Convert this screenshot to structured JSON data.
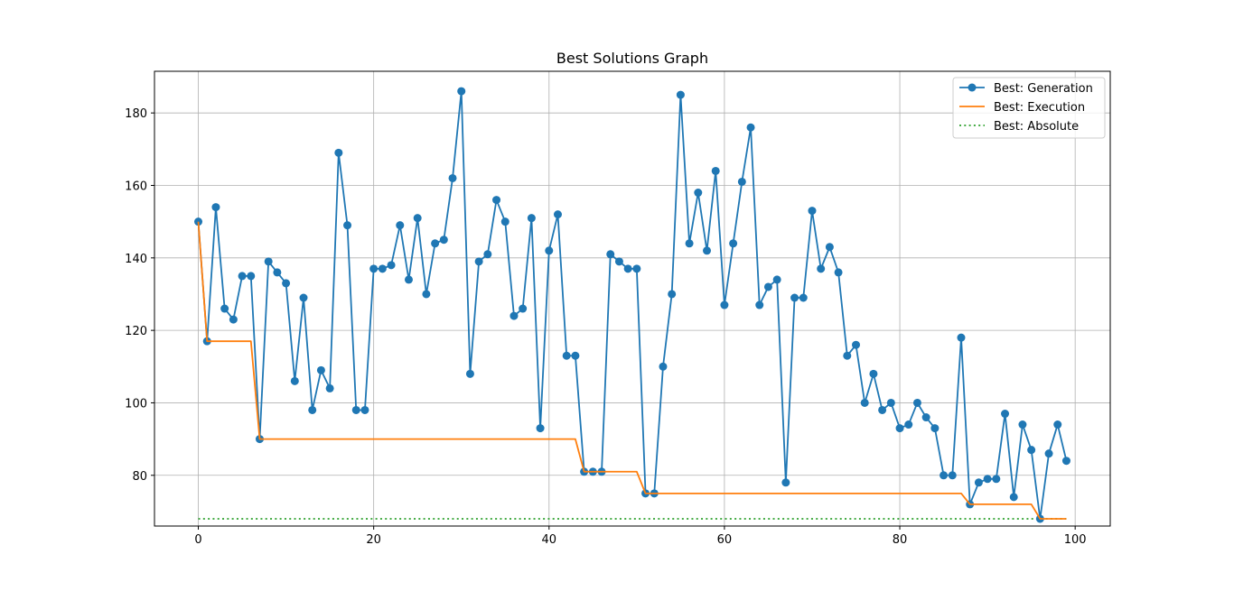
{
  "chart_data": {
    "type": "line",
    "title": "Best Solutions Graph",
    "xlabel": "",
    "ylabel": "",
    "xlim": [
      -5,
      104
    ],
    "ylim": [
      66,
      191.5
    ],
    "xticks": [
      0,
      20,
      40,
      60,
      80,
      100
    ],
    "yticks": [
      80,
      100,
      120,
      140,
      160,
      180
    ],
    "grid": true,
    "legend_position": "top-right",
    "series": [
      {
        "name": "Best: Generation",
        "color": "#1f77b4",
        "style": "line-marker",
        "values": [
          150,
          117,
          154,
          126,
          123,
          135,
          135,
          90,
          139,
          136,
          133,
          106,
          129,
          98,
          109,
          104,
          169,
          149,
          98,
          98,
          137,
          137,
          138,
          149,
          134,
          151,
          130,
          144,
          145,
          162,
          186,
          108,
          139,
          141,
          156,
          150,
          124,
          126,
          151,
          93,
          142,
          152,
          113,
          113,
          81,
          81,
          81,
          141,
          139,
          137,
          137,
          75,
          75,
          110,
          130,
          185,
          144,
          158,
          142,
          164,
          127,
          144,
          161,
          176,
          127,
          132,
          134,
          78,
          129,
          129,
          153,
          137,
          143,
          136,
          113,
          116,
          100,
          108,
          98,
          100,
          93,
          94,
          100,
          96,
          93,
          80,
          80,
          118,
          72,
          78,
          79,
          79,
          97,
          74,
          94,
          87,
          68,
          86,
          94,
          84
        ]
      },
      {
        "name": "Best: Execution",
        "color": "#ff7f0e",
        "style": "line",
        "values": [
          150,
          117,
          117,
          117,
          117,
          117,
          117,
          90,
          90,
          90,
          90,
          90,
          90,
          90,
          90,
          90,
          90,
          90,
          90,
          90,
          90,
          90,
          90,
          90,
          90,
          90,
          90,
          90,
          90,
          90,
          90,
          90,
          90,
          90,
          90,
          90,
          90,
          90,
          90,
          90,
          90,
          90,
          90,
          90,
          81,
          81,
          81,
          81,
          81,
          81,
          81,
          75,
          75,
          75,
          75,
          75,
          75,
          75,
          75,
          75,
          75,
          75,
          75,
          75,
          75,
          75,
          75,
          75,
          75,
          75,
          75,
          75,
          75,
          75,
          75,
          75,
          75,
          75,
          75,
          75,
          75,
          75,
          75,
          75,
          75,
          75,
          75,
          75,
          72,
          72,
          72,
          72,
          72,
          72,
          72,
          72,
          68,
          68,
          68,
          68
        ]
      },
      {
        "name": "Best: Absolute",
        "color": "#2ca02c",
        "style": "dotted",
        "values": [
          68,
          68,
          68,
          68,
          68,
          68,
          68,
          68,
          68,
          68,
          68,
          68,
          68,
          68,
          68,
          68,
          68,
          68,
          68,
          68,
          68,
          68,
          68,
          68,
          68,
          68,
          68,
          68,
          68,
          68,
          68,
          68,
          68,
          68,
          68,
          68,
          68,
          68,
          68,
          68,
          68,
          68,
          68,
          68,
          68,
          68,
          68,
          68,
          68,
          68,
          68,
          68,
          68,
          68,
          68,
          68,
          68,
          68,
          68,
          68,
          68,
          68,
          68,
          68,
          68,
          68,
          68,
          68,
          68,
          68,
          68,
          68,
          68,
          68,
          68,
          68,
          68,
          68,
          68,
          68,
          68,
          68,
          68,
          68,
          68,
          68,
          68,
          68,
          68,
          68,
          68,
          68,
          68,
          68,
          68,
          68,
          68,
          68,
          68,
          68
        ]
      }
    ]
  }
}
